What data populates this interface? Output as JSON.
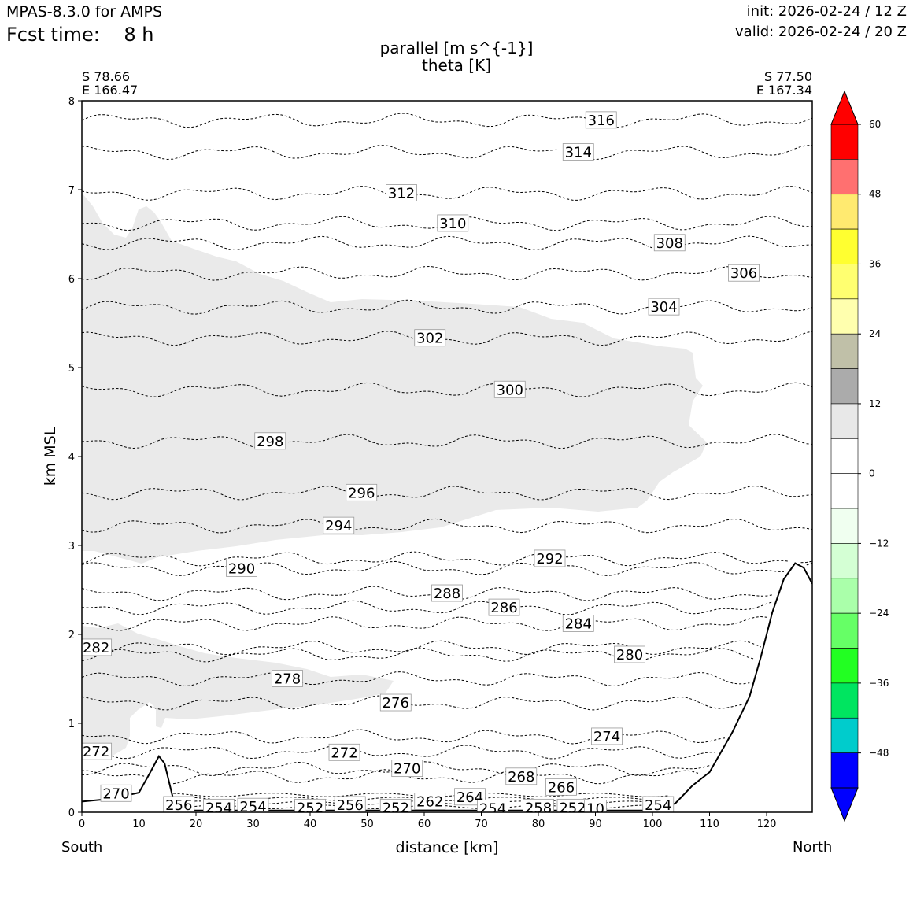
{
  "header": {
    "model": "MPAS-8.3.0 for AMPS",
    "fcst_label": "Fcst time:",
    "fcst_value": "8 h",
    "init": "init: 2026-02-24 / 12 Z",
    "valid": "valid: 2026-02-24 / 20 Z"
  },
  "endpoints": {
    "left_lat": "S 78.66",
    "left_lon": "E 166.47",
    "right_lat": "S 77.50",
    "right_lon": "E 167.34",
    "south_label": "South",
    "north_label": "North"
  },
  "chart_data": {
    "type": "contour",
    "title_lines": [
      "parallel [m s^{-1}]",
      "theta [K]"
    ],
    "xlabel": "distance [km]",
    "ylabel": "km MSL",
    "xlim": [
      0,
      128
    ],
    "ylim": [
      0,
      8
    ],
    "xticks": [
      0,
      10,
      20,
      30,
      40,
      50,
      60,
      70,
      80,
      90,
      100,
      110,
      120
    ],
    "yticks": [
      0,
      1,
      2,
      3,
      4,
      5,
      6,
      7,
      8
    ],
    "theta_labels": [
      {
        "text": "316",
        "x": 91,
        "y": 7.78
      },
      {
        "text": "314",
        "x": 87,
        "y": 7.42
      },
      {
        "text": "312",
        "x": 56,
        "y": 6.96
      },
      {
        "text": "310",
        "x": 65,
        "y": 6.62
      },
      {
        "text": "308",
        "x": 103,
        "y": 6.4
      },
      {
        "text": "306",
        "x": 116,
        "y": 6.06
      },
      {
        "text": "304",
        "x": 102,
        "y": 5.68
      },
      {
        "text": "302",
        "x": 61,
        "y": 5.33
      },
      {
        "text": "300",
        "x": 75,
        "y": 4.75
      },
      {
        "text": "298",
        "x": 33,
        "y": 4.17
      },
      {
        "text": "296",
        "x": 49,
        "y": 3.59
      },
      {
        "text": "294",
        "x": 45,
        "y": 3.22
      },
      {
        "text": "292",
        "x": 82,
        "y": 2.85
      },
      {
        "text": "290",
        "x": 28,
        "y": 2.74
      },
      {
        "text": "288",
        "x": 64,
        "y": 2.46
      },
      {
        "text": "286",
        "x": 74,
        "y": 2.3
      },
      {
        "text": "284",
        "x": 87,
        "y": 2.12
      },
      {
        "text": "282",
        "x": 2.5,
        "y": 1.85
      },
      {
        "text": "280",
        "x": 96,
        "y": 1.77
      },
      {
        "text": "278",
        "x": 36,
        "y": 1.5
      },
      {
        "text": "276",
        "x": 55,
        "y": 1.23
      },
      {
        "text": "274",
        "x": 92,
        "y": 0.85
      },
      {
        "text": "272",
        "x": 2.5,
        "y": 0.68
      },
      {
        "text": "272",
        "x": 46,
        "y": 0.67
      },
      {
        "text": "270",
        "x": 57,
        "y": 0.49
      },
      {
        "text": "270",
        "x": 6,
        "y": 0.21
      },
      {
        "text": "268",
        "x": 77,
        "y": 0.4
      },
      {
        "text": "266",
        "x": 84,
        "y": 0.28
      },
      {
        "text": "264",
        "x": 68,
        "y": 0.17
      },
      {
        "text": "262",
        "x": 61,
        "y": 0.12
      },
      {
        "text": "256",
        "x": 17,
        "y": 0.08
      },
      {
        "text": "254",
        "x": 24,
        "y": 0.05
      },
      {
        "text": "254",
        "x": 30,
        "y": 0.06
      },
      {
        "text": "252",
        "x": 40,
        "y": 0.05
      },
      {
        "text": "256",
        "x": 47,
        "y": 0.08
      },
      {
        "text": "252",
        "x": 55,
        "y": 0.05
      },
      {
        "text": "254",
        "x": 72,
        "y": 0.04
      },
      {
        "text": "258",
        "x": 80,
        "y": 0.05
      },
      {
        "text": "252",
        "x": 86,
        "y": 0.05
      },
      {
        "text": "10",
        "x": 90,
        "y": 0.04
      },
      {
        "text": "254",
        "x": 101,
        "y": 0.08
      }
    ],
    "terrain": [
      [
        0,
        0.12
      ],
      [
        5,
        0.15
      ],
      [
        10,
        0.22
      ],
      [
        12,
        0.45
      ],
      [
        13.5,
        0.63
      ],
      [
        14.5,
        0.55
      ],
      [
        16,
        0.15
      ],
      [
        18,
        0.02
      ],
      [
        100,
        0.02
      ],
      [
        104,
        0.1
      ],
      [
        107,
        0.3
      ],
      [
        110,
        0.45
      ],
      [
        114,
        0.9
      ],
      [
        117,
        1.3
      ],
      [
        119,
        1.75
      ],
      [
        121,
        2.25
      ],
      [
        123,
        2.62
      ],
      [
        125,
        2.8
      ],
      [
        126.5,
        2.75
      ],
      [
        128,
        2.57
      ]
    ],
    "shaded_ranges": {
      "upper_region": "parallel wind 6 to 12 m/s",
      "lower_region": "parallel wind 6 to 12 m/s"
    },
    "colorbar": {
      "ticks": [
        60,
        48,
        36,
        24,
        12,
        0,
        -12,
        -24,
        -36,
        -48
      ],
      "tick_labels": [
        "60",
        "48",
        "36",
        "24",
        "12",
        "0",
        "−12",
        "−24",
        "−36",
        "−48"
      ],
      "colors": [
        "#ff0000",
        "#ff7070",
        "#ffea70",
        "#ffff30",
        "#ffff70",
        "#ffffae",
        "#c0c0a8",
        "#ababab",
        "#e8e8e8",
        "#ffffff",
        "#ffffff",
        "#f0fff0",
        "#d4ffd4",
        "#aaffaa",
        "#66ff66",
        "#22ff22",
        "#00e560",
        "#00cccc",
        "#0000ff"
      ],
      "extend_top": "#ff0000",
      "extend_bottom": "#0000ff"
    }
  }
}
